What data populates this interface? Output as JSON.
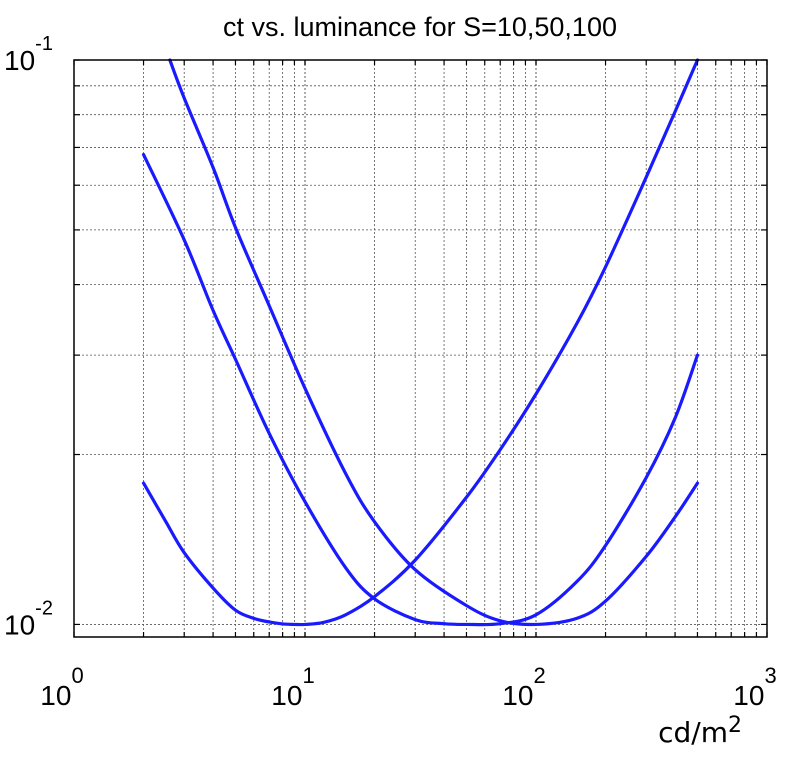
{
  "chart_data": {
    "type": "line",
    "title": "ct vs. luminance for S=10,50,100",
    "xlabel": "cd/m",
    "xlabel_sup": "2",
    "ylabel": "",
    "xscale": "log",
    "yscale": "log",
    "xlim": [
      1,
      1000
    ],
    "ylim": [
      0.0095,
      0.1
    ],
    "grid": true,
    "x_ticks": [
      {
        "value": 1,
        "base": "10",
        "exp": "0"
      },
      {
        "value": 10,
        "base": "10",
        "exp": "1"
      },
      {
        "value": 100,
        "base": "10",
        "exp": "2"
      },
      {
        "value": 1000,
        "base": "10",
        "exp": "3"
      }
    ],
    "y_ticks": [
      {
        "value": 0.01,
        "base": "10",
        "exp": "-2"
      },
      {
        "value": 0.1,
        "base": "10",
        "exp": "-1"
      }
    ],
    "line_color": "#1a1aff",
    "series": [
      {
        "x": [
          2,
          2.5,
          3,
          4,
          5,
          6,
          7,
          8,
          9,
          10,
          12,
          15,
          20,
          30,
          50,
          70,
          100,
          150,
          200,
          300,
          400,
          500
        ],
        "values": [
          0.0178,
          0.0152,
          0.0134,
          0.0116,
          0.0106,
          0.01025,
          0.0101,
          0.01002,
          0.01,
          0.01,
          0.01008,
          0.0104,
          0.0112,
          0.013,
          0.0168,
          0.0204,
          0.0256,
          0.0341,
          0.043,
          0.062,
          0.081,
          0.1
        ]
      },
      {
        "x": [
          2,
          3,
          4,
          5,
          7,
          10,
          15,
          20,
          30,
          40,
          50,
          70,
          100,
          150,
          200,
          300,
          400,
          500
        ],
        "values": [
          0.068,
          0.048,
          0.036,
          0.0295,
          0.0218,
          0.0165,
          0.0126,
          0.0111,
          0.0102,
          0.01003,
          0.01,
          0.01003,
          0.0104,
          0.0119,
          0.0138,
          0.0182,
          0.0232,
          0.03
        ]
      },
      {
        "x": [
          2.6,
          3,
          4,
          5,
          7,
          10,
          15,
          20,
          30,
          50,
          70,
          100,
          150,
          200,
          300,
          400,
          500
        ],
        "values": [
          0.1,
          0.0856,
          0.0645,
          0.0505,
          0.0367,
          0.0262,
          0.0185,
          0.0152,
          0.0125,
          0.0108,
          0.01015,
          0.01,
          0.01025,
          0.011,
          0.0132,
          0.0155,
          0.0178
        ]
      }
    ]
  }
}
